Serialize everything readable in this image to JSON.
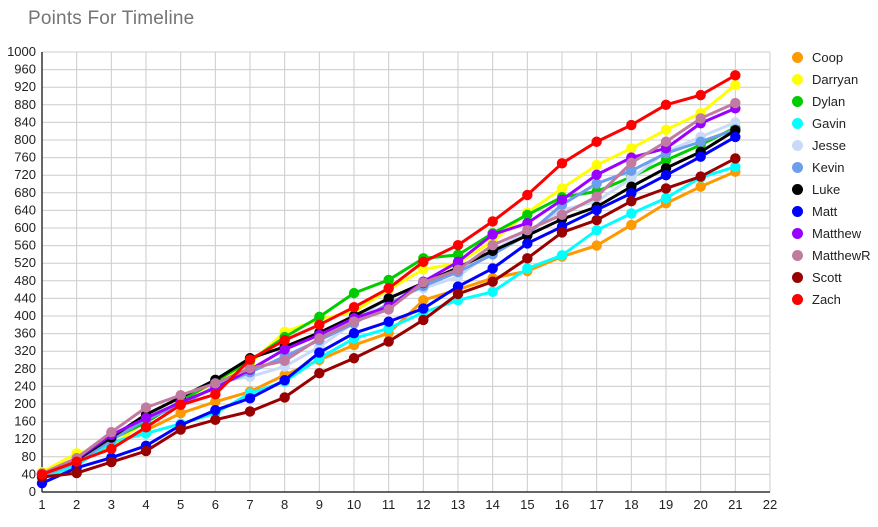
{
  "chart_data": {
    "type": "line",
    "title": "Points For Timeline",
    "xlabel": "",
    "ylabel": "",
    "x": [
      1,
      2,
      3,
      4,
      5,
      6,
      7,
      8,
      9,
      10,
      11,
      12,
      13,
      14,
      15,
      16,
      17,
      18,
      19,
      20,
      21
    ],
    "xlim": [
      1,
      22
    ],
    "ylim": [
      0,
      1000
    ],
    "y_tick_step": 40,
    "x_tick_step": 1,
    "grid": true,
    "legend_position": "right",
    "grid_color": "#cccccc",
    "axis_color": "#333333",
    "title_color": "#757575",
    "tick_label_color": "#222222",
    "series": [
      {
        "name": "Coop",
        "color": "#ff9900",
        "values": [
          38,
          64,
          108,
          140,
          179,
          205,
          228,
          266,
          300,
          334,
          361,
          436,
          460,
          486,
          502,
          535,
          560,
          607,
          656,
          694,
          728
        ]
      },
      {
        "name": "Darryan",
        "color": "#ffff00",
        "values": [
          45,
          88,
          105,
          162,
          205,
          250,
          292,
          364,
          392,
          410,
          460,
          506,
          520,
          570,
          635,
          690,
          743,
          781,
          823,
          861,
          925
        ]
      },
      {
        "name": "Dylan",
        "color": "#00cc00",
        "values": [
          40,
          70,
          120,
          158,
          207,
          252,
          298,
          352,
          398,
          452,
          482,
          531,
          539,
          588,
          630,
          670,
          683,
          716,
          754,
          789,
          828
        ]
      },
      {
        "name": "Gavin",
        "color": "#00ffff",
        "values": [
          33,
          60,
          113,
          133,
          155,
          179,
          224,
          251,
          304,
          349,
          372,
          408,
          436,
          455,
          508,
          538,
          595,
          633,
          668,
          715,
          739
        ]
      },
      {
        "name": "Jesse",
        "color": "#c9daf8",
        "values": [
          40,
          72,
          125,
          172,
          217,
          250,
          262,
          285,
          330,
          385,
          444,
          463,
          489,
          548,
          592,
          641,
          660,
          713,
          773,
          807,
          840
        ]
      },
      {
        "name": "Kevin",
        "color": "#6d9eeb",
        "values": [
          37,
          67,
          118,
          165,
          198,
          240,
          272,
          308,
          345,
          383,
          428,
          468,
          500,
          540,
          585,
          653,
          701,
          730,
          770,
          796,
          824
        ]
      },
      {
        "name": "Luke",
        "color": "#000000",
        "values": [
          42,
          73,
          124,
          176,
          215,
          255,
          304,
          330,
          362,
          400,
          440,
          475,
          510,
          548,
          583,
          620,
          648,
          694,
          736,
          773,
          822
        ]
      },
      {
        "name": "Matt",
        "color": "#0000ff",
        "values": [
          20,
          55,
          78,
          105,
          152,
          186,
          213,
          254,
          317,
          361,
          387,
          417,
          467,
          508,
          565,
          603,
          641,
          679,
          720,
          762,
          807
        ]
      },
      {
        "name": "Matthew",
        "color": "#9900ff",
        "values": [
          40,
          75,
          130,
          168,
          204,
          236,
          278,
          324,
          357,
          395,
          421,
          478,
          523,
          585,
          611,
          664,
          721,
          760,
          781,
          838,
          872
        ]
      },
      {
        "name": "MatthewR",
        "color": "#c27ba0",
        "values": [
          42,
          77,
          136,
          192,
          220,
          247,
          281,
          298,
          349,
          387,
          415,
          476,
          505,
          561,
          595,
          630,
          671,
          748,
          796,
          849,
          884
        ]
      },
      {
        "name": "Scott",
        "color": "#990000",
        "values": [
          34,
          43,
          68,
          93,
          142,
          164,
          183,
          215,
          270,
          304,
          342,
          391,
          450,
          478,
          531,
          590,
          618,
          661,
          690,
          717,
          758
        ]
      },
      {
        "name": "Zach",
        "color": "#ff0000",
        "values": [
          40,
          69,
          98,
          147,
          198,
          222,
          301,
          345,
          380,
          420,
          463,
          523,
          561,
          615,
          675,
          747,
          796,
          834,
          880,
          902,
          947
        ]
      }
    ]
  }
}
